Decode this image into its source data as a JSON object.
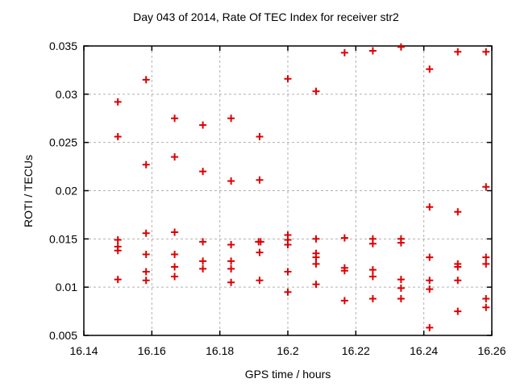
{
  "chart_data": {
    "type": "scatter",
    "title": "Day 043 of 2014, Rate Of TEC Index for receiver str2",
    "xlabel": "GPS time / hours",
    "ylabel": "ROTI / TECUs",
    "xlim": [
      16.14,
      16.26
    ],
    "ylim": [
      0.005,
      0.035
    ],
    "grid": true,
    "legend": "none",
    "xticks": {
      "values": [
        16.14,
        16.16,
        16.18,
        16.2,
        16.22,
        16.24,
        16.26
      ],
      "labels": [
        "16.14",
        "16.16",
        "16.18",
        "16.2",
        "16.22",
        "16.24",
        "16.26"
      ]
    },
    "yticks": {
      "values": [
        0.005,
        0.01,
        0.015,
        0.02,
        0.025,
        0.03,
        0.035
      ],
      "labels": [
        "0.005",
        "0.01",
        "0.015",
        "0.02",
        "0.025",
        "0.03",
        "0.035"
      ]
    },
    "marker": {
      "shape": "plus",
      "color": "#dd0000"
    },
    "grid_color": "#b0b0b0",
    "series": [
      {
        "name": "ROTI",
        "points": [
          [
            16.15,
            0.0292
          ],
          [
            16.15,
            0.0256
          ],
          [
            16.15,
            0.0149
          ],
          [
            16.15,
            0.0142
          ],
          [
            16.15,
            0.0138
          ],
          [
            16.15,
            0.0108
          ],
          [
            16.1583,
            0.0315
          ],
          [
            16.1583,
            0.0227
          ],
          [
            16.1583,
            0.0156
          ],
          [
            16.1583,
            0.0134
          ],
          [
            16.1583,
            0.0116
          ],
          [
            16.1583,
            0.0107
          ],
          [
            16.1667,
            0.0275
          ],
          [
            16.1667,
            0.0235
          ],
          [
            16.1667,
            0.0157
          ],
          [
            16.1667,
            0.0134
          ],
          [
            16.1667,
            0.0121
          ],
          [
            16.1667,
            0.0111
          ],
          [
            16.175,
            0.0268
          ],
          [
            16.175,
            0.022
          ],
          [
            16.175,
            0.0147
          ],
          [
            16.175,
            0.0127
          ],
          [
            16.175,
            0.0119
          ],
          [
            16.1833,
            0.0275
          ],
          [
            16.1833,
            0.021
          ],
          [
            16.1833,
            0.0144
          ],
          [
            16.1833,
            0.0127
          ],
          [
            16.1833,
            0.0119
          ],
          [
            16.1833,
            0.0105
          ],
          [
            16.1917,
            0.0256
          ],
          [
            16.1917,
            0.0211
          ],
          [
            16.1914,
            0.0147
          ],
          [
            16.192,
            0.0147
          ],
          [
            16.1917,
            0.0136
          ],
          [
            16.1917,
            0.0107
          ],
          [
            16.2,
            0.0316
          ],
          [
            16.2,
            0.0154
          ],
          [
            16.2,
            0.0149
          ],
          [
            16.2,
            0.0144
          ],
          [
            16.2,
            0.0116
          ],
          [
            16.2,
            0.0095
          ],
          [
            16.2083,
            0.0303
          ],
          [
            16.2083,
            0.015
          ],
          [
            16.2083,
            0.0135
          ],
          [
            16.2083,
            0.0131
          ],
          [
            16.2083,
            0.0124
          ],
          [
            16.2083,
            0.0103
          ],
          [
            16.2167,
            0.0343
          ],
          [
            16.2167,
            0.0151
          ],
          [
            16.2167,
            0.012
          ],
          [
            16.2167,
            0.0117
          ],
          [
            16.2167,
            0.0086
          ],
          [
            16.225,
            0.0345
          ],
          [
            16.225,
            0.015
          ],
          [
            16.225,
            0.0145
          ],
          [
            16.225,
            0.0118
          ],
          [
            16.225,
            0.0111
          ],
          [
            16.225,
            0.0088
          ],
          [
            16.2333,
            0.0349
          ],
          [
            16.2333,
            0.015
          ],
          [
            16.2333,
            0.0146
          ],
          [
            16.2333,
            0.0108
          ],
          [
            16.2333,
            0.0099
          ],
          [
            16.2333,
            0.0088
          ],
          [
            16.2417,
            0.0326
          ],
          [
            16.2417,
            0.0183
          ],
          [
            16.2417,
            0.0131
          ],
          [
            16.2417,
            0.0107
          ],
          [
            16.2417,
            0.0098
          ],
          [
            16.2417,
            0.0058
          ],
          [
            16.25,
            0.0344
          ],
          [
            16.25,
            0.0178
          ],
          [
            16.25,
            0.0124
          ],
          [
            16.25,
            0.0121
          ],
          [
            16.25,
            0.0107
          ],
          [
            16.25,
            0.0075
          ],
          [
            16.2583,
            0.0344
          ],
          [
            16.2583,
            0.0204
          ],
          [
            16.2583,
            0.0131
          ],
          [
            16.2583,
            0.0124
          ],
          [
            16.2583,
            0.0088
          ],
          [
            16.2583,
            0.0079
          ]
        ]
      }
    ]
  }
}
